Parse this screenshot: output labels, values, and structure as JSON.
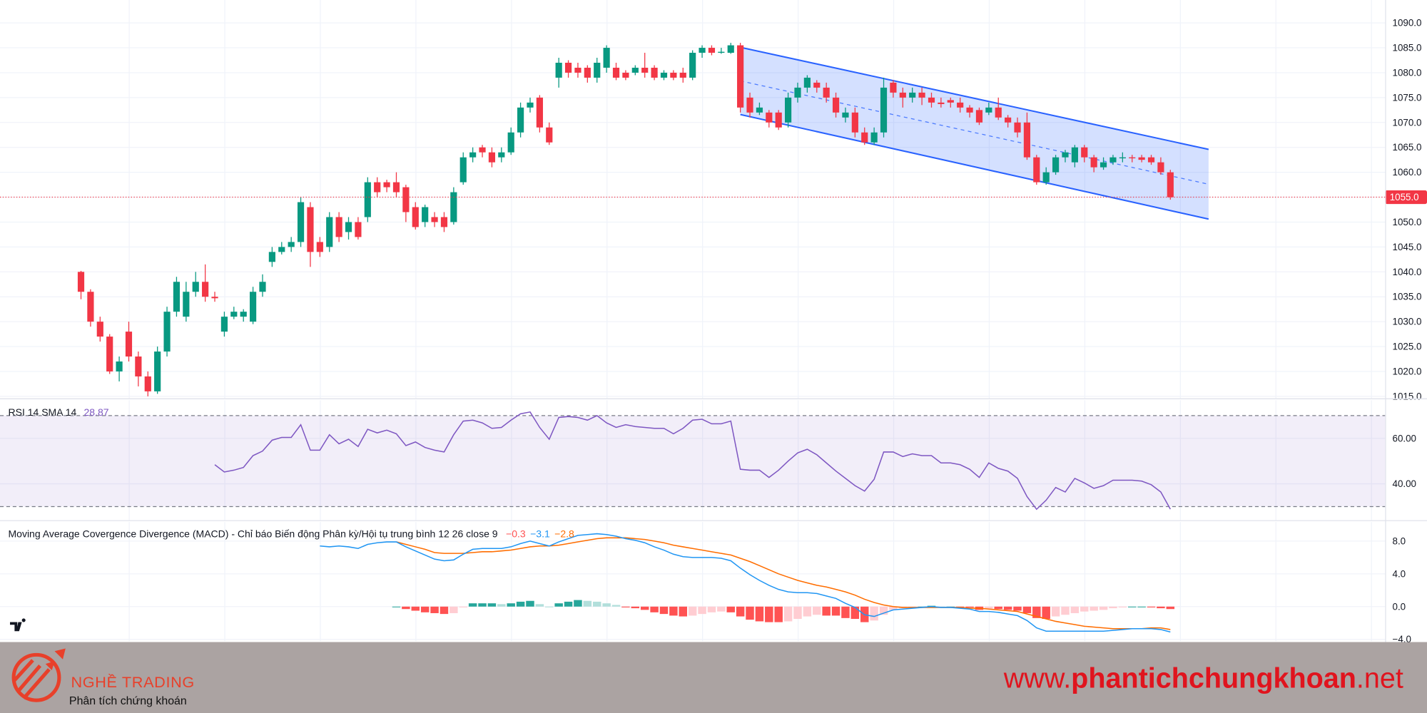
{
  "chart_data": [
    {
      "type": "candlestick",
      "open": [
        1040,
        1036,
        1030,
        1027,
        1020,
        1028,
        1023,
        1019,
        1016,
        1024,
        1032,
        1031,
        1036,
        1038,
        1035,
        1028,
        1031,
        1031,
        1030,
        1036,
        1042,
        1044,
        1045,
        1046,
        1053,
        1046,
        1045,
        1051,
        1048,
        1050,
        1051,
        1058,
        1058,
        1058,
        1057,
        1053,
        1050,
        1051,
        1051,
        1050,
        1058,
        1063,
        1065,
        1064,
        1063,
        1064,
        1068,
        1073,
        1075,
        1069,
        1079,
        1082,
        1081,
        1081,
        1079,
        1081,
        1081,
        1080,
        1080,
        1081,
        1081,
        1079,
        1080,
        1080,
        1079,
        1084,
        1085,
        1084,
        1084,
        1085.5,
        1075,
        1072,
        1072,
        1072,
        1070,
        1075,
        1077,
        1078,
        1077,
        1075,
        1071,
        1072,
        1068,
        1066,
        1068,
        1078,
        1076,
        1075,
        1076,
        1075,
        1074,
        1074.5,
        1074,
        1073,
        1072.5,
        1072,
        1073,
        1071,
        1070,
        1070,
        1063,
        1058,
        1060,
        1063,
        1062,
        1065,
        1063,
        1061,
        1062,
        1062.8,
        1063,
        1063,
        1063,
        1062,
        1060
      ],
      "high": [
        1040.2,
        1036.5,
        1031,
        1027.5,
        1023,
        1030,
        1024,
        1020,
        1025,
        1033,
        1039,
        1038,
        1040,
        1041.5,
        1036,
        1032,
        1033,
        1032.5,
        1037,
        1039.5,
        1045,
        1046,
        1047,
        1055,
        1054,
        1047,
        1052,
        1052,
        1051,
        1051,
        1059,
        1059,
        1058.5,
        1060,
        1057.5,
        1054,
        1053.5,
        1052,
        1052,
        1057,
        1064,
        1065,
        1065.5,
        1065,
        1065,
        1069,
        1074,
        1075,
        1075.5,
        1070,
        1083,
        1082.5,
        1082,
        1081.5,
        1083,
        1085.5,
        1082,
        1080.5,
        1081.5,
        1084,
        1081.5,
        1080.5,
        1080.5,
        1081,
        1084.5,
        1085.5,
        1085.5,
        1085,
        1086,
        1086,
        1076,
        1074,
        1072.5,
        1072.5,
        1076,
        1078,
        1079.5,
        1078.5,
        1078,
        1076,
        1073,
        1073,
        1069,
        1069,
        1079,
        1078.5,
        1077,
        1077,
        1077,
        1076,
        1075,
        1075,
        1075,
        1073.5,
        1073,
        1074,
        1075,
        1071.5,
        1071,
        1072,
        1063.5,
        1061,
        1063.5,
        1064.5,
        1065.5,
        1065.5,
        1063.5,
        1063,
        1063.5,
        1064,
        1063.5,
        1063.5,
        1063.5,
        1063,
        1060.5
      ],
      "low": [
        1034.5,
        1029,
        1026,
        1019.5,
        1018,
        1022,
        1017,
        1015,
        1015.5,
        1023,
        1031,
        1030,
        1035,
        1034,
        1034,
        1027,
        1030.5,
        1030,
        1029.5,
        1035,
        1041,
        1043.5,
        1044,
        1045,
        1041,
        1043,
        1044,
        1046,
        1046.5,
        1046.5,
        1050,
        1055,
        1056,
        1055,
        1050,
        1048.5,
        1049,
        1049,
        1048,
        1049.5,
        1057.5,
        1062,
        1063,
        1061,
        1062,
        1063.5,
        1067,
        1072,
        1068,
        1065.5,
        1077,
        1079,
        1079,
        1078,
        1078,
        1080,
        1078.5,
        1078.5,
        1079.5,
        1079,
        1078.5,
        1078.5,
        1078.5,
        1078,
        1078.5,
        1083,
        1083.5,
        1083.8,
        1083.8,
        1072,
        1071,
        1071.5,
        1069,
        1068.5,
        1069,
        1074,
        1076,
        1076,
        1074,
        1071,
        1070,
        1067,
        1065.5,
        1065.5,
        1067,
        1075,
        1073,
        1074,
        1073.5,
        1073,
        1073,
        1073,
        1072,
        1071,
        1069.5,
        1071.5,
        1070.5,
        1069,
        1067,
        1062.5,
        1057.5,
        1057.5,
        1059.5,
        1062,
        1061,
        1062,
        1060,
        1060.5,
        1061.5,
        1062,
        1062,
        1062,
        1061.5,
        1059.5,
        1054.5
      ],
      "close": [
        1036,
        1030,
        1027,
        1020,
        1022,
        1023,
        1019,
        1016,
        1024,
        1032,
        1038,
        1036,
        1038,
        1035,
        1034.7,
        1031,
        1032,
        1032,
        1036,
        1038,
        1044,
        1045,
        1046,
        1054,
        1044,
        1044,
        1051,
        1047,
        1050,
        1047,
        1058,
        1056,
        1057,
        1056,
        1052,
        1049,
        1053,
        1050,
        1049,
        1056,
        1063,
        1064,
        1064,
        1062,
        1064,
        1068,
        1073,
        1074,
        1069,
        1066,
        1082,
        1080,
        1080,
        1079,
        1082,
        1085,
        1079,
        1079,
        1081,
        1080,
        1079,
        1080,
        1079,
        1079,
        1084,
        1085,
        1084,
        1084.2,
        1085.5,
        1073,
        1072,
        1073,
        1070,
        1069,
        1075,
        1077,
        1079,
        1077,
        1075,
        1072,
        1072,
        1068,
        1066,
        1068,
        1077,
        1076,
        1075,
        1076,
        1075,
        1074,
        1073.7,
        1074,
        1073,
        1072,
        1070,
        1073,
        1071,
        1070,
        1068,
        1063,
        1058,
        1060,
        1063,
        1064,
        1065,
        1063,
        1061,
        1062,
        1063,
        1063,
        1062.8,
        1062.5,
        1062,
        1060,
        1055
      ],
      "up_color": "#089981",
      "down_color": "#f23645",
      "ylim": [
        1014.6,
        1094.6
      ],
      "yticks": [
        {
          "value": 1015,
          "label": "1015.0"
        },
        {
          "value": 1020,
          "label": "1020.0"
        },
        {
          "value": 1025,
          "label": "1025.0"
        },
        {
          "value": 1030,
          "label": "1030.0"
        },
        {
          "value": 1035,
          "label": "1035.0"
        },
        {
          "value": 1040,
          "label": "1040.0"
        },
        {
          "value": 1045,
          "label": "1045.0"
        },
        {
          "value": 1050,
          "label": "1050.0"
        },
        {
          "value": 1055,
          "label": "1055.0"
        },
        {
          "value": 1060,
          "label": "1060.0"
        },
        {
          "value": 1065,
          "label": "1065.0"
        },
        {
          "value": 1070,
          "label": "1070.0"
        },
        {
          "value": 1075,
          "label": "1075.0"
        },
        {
          "value": 1080,
          "label": "1080.0"
        },
        {
          "value": 1085,
          "label": "1085.0"
        },
        {
          "value": 1090,
          "label": "1090.0"
        }
      ],
      "grid": true,
      "last_price": {
        "value": 1055,
        "label": "1055.0"
      },
      "channel": {
        "start_index": 69,
        "end_index": 118,
        "upper": [
          1085.1,
          1064.6
        ],
        "middle": [
          1078.35,
          1057.6
        ],
        "lower": [
          1071.6,
          1050.6
        ],
        "color": "#2962ff"
      }
    },
    {
      "type": "rsi",
      "title": "RSI 14 SMA 14",
      "last_value": 28.87,
      "values": [
        null,
        null,
        null,
        null,
        null,
        null,
        null,
        null,
        null,
        null,
        null,
        null,
        null,
        null,
        48.4,
        45.2,
        46,
        47.2,
        52.4,
        54.4,
        59.2,
        60.4,
        60.4,
        66,
        54.8,
        54.8,
        61.6,
        57.6,
        59.6,
        56.4,
        64,
        62.4,
        63.6,
        62,
        56.8,
        58.4,
        56,
        54.8,
        54,
        61.6,
        67.6,
        68,
        66.8,
        64.4,
        64.8,
        68,
        70.8,
        71.6,
        64.8,
        59.6,
        69.2,
        69.6,
        69.2,
        68,
        70,
        66.8,
        64.8,
        66,
        65.2,
        64.8,
        64.4,
        64.4,
        62,
        64.4,
        68,
        68.4,
        66.4,
        66.4,
        67.6,
        46.4,
        46,
        46,
        42.8,
        46,
        50,
        53.6,
        55.2,
        52.8,
        49.2,
        45.6,
        42.4,
        39.2,
        36.8,
        42,
        54,
        54,
        52,
        53.2,
        52.4,
        52.4,
        49.2,
        49.2,
        48.4,
        46.4,
        42.8,
        49.2,
        46.8,
        45.6,
        42.4,
        34.4,
        28.8,
        32.8,
        38.4,
        36.4,
        42.4,
        40.4,
        38,
        39.2,
        41.6,
        41.6,
        41.6,
        41.2,
        39.6,
        36.4,
        28.87
      ],
      "color": "#7e57c2",
      "band": [
        30,
        70
      ],
      "ylim": [
        24,
        76.8
      ],
      "yticks": [
        {
          "value": 60,
          "label": "60.00"
        },
        {
          "value": 40,
          "label": "40.00"
        }
      ],
      "grid": true
    },
    {
      "type": "macd",
      "title": "Moving Average Covergence Divergence (MACD) - Chỉ báo Biến động Phân kỳ/Hội tụ trung bình 12 26 close 9",
      "legend_values": [
        {
          "value": -0.3,
          "label": "−0.3"
        },
        {
          "value": -3.1,
          "label": "−3.1"
        },
        {
          "value": -2.8,
          "label": "−2.8"
        }
      ],
      "histogram": {
        "color_up": "#26a69a",
        "color_up_fade": "#b2dfdb",
        "color_down": "#ff5252",
        "color_down_fade": "#ffcdd2",
        "values": [
          null,
          null,
          null,
          null,
          null,
          null,
          null,
          null,
          null,
          null,
          null,
          null,
          null,
          null,
          null,
          null,
          null,
          null,
          null,
          null,
          null,
          null,
          null,
          null,
          null,
          null,
          null,
          null,
          null,
          null,
          null,
          null,
          null,
          0.0,
          -0.3,
          -0.5,
          -0.7,
          -0.8,
          -0.9,
          -0.8,
          -0.1,
          0.4,
          0.4,
          0.4,
          0.3,
          0.4,
          0.6,
          0.7,
          0.3,
          0.0,
          0.4,
          0.6,
          0.8,
          0.7,
          0.6,
          0.4,
          0.2,
          -0.1,
          -0.2,
          -0.4,
          -0.7,
          -0.9,
          -1.1,
          -1.2,
          -1.1,
          -0.9,
          -0.7,
          -0.6,
          -0.7,
          -1.2,
          -1.6,
          -1.8,
          -1.9,
          -1.9,
          -1.8,
          -1.5,
          -1.2,
          -1.0,
          -1.1,
          -1.1,
          -1.4,
          -1.5,
          -1.9,
          -1.7,
          -1.0,
          -0.4,
          -0.2,
          -0.1,
          0.0,
          0.1,
          0.0,
          0.0,
          -0.1,
          -0.1,
          -0.4,
          -0.3,
          -0.3,
          -0.4,
          -0.5,
          -0.8,
          -1.4,
          -1.5,
          -1.2,
          -1.0,
          -0.8,
          -0.6,
          -0.5,
          -0.4,
          -0.2,
          -0.1,
          0.0,
          0.0,
          -0.1,
          -0.2,
          -0.3
        ]
      },
      "macd": {
        "color": "#2196f3",
        "values": [
          null,
          null,
          null,
          null,
          null,
          null,
          null,
          null,
          null,
          null,
          null,
          null,
          null,
          null,
          null,
          null,
          null,
          null,
          null,
          null,
          null,
          null,
          null,
          null,
          null,
          7.4,
          7.3,
          7.4,
          7.3,
          7.1,
          7.6,
          7.8,
          7.9,
          7.9,
          7.3,
          6.8,
          6.3,
          5.8,
          5.6,
          5.7,
          6.4,
          7.0,
          7.1,
          7.1,
          7.1,
          7.3,
          7.7,
          8.0,
          7.7,
          7.4,
          7.9,
          8.3,
          8.7,
          8.8,
          8.9,
          8.8,
          8.6,
          8.3,
          8.1,
          7.8,
          7.3,
          6.9,
          6.4,
          6.1,
          6.0,
          6.0,
          6.0,
          5.9,
          5.6,
          4.7,
          3.9,
          3.2,
          2.6,
          2.1,
          1.8,
          1.7,
          1.7,
          1.6,
          1.3,
          1.0,
          0.4,
          -0.1,
          -1.0,
          -1.2,
          -0.8,
          -0.4,
          -0.3,
          -0.2,
          -0.1,
          0.0,
          -0.1,
          -0.1,
          -0.2,
          -0.3,
          -0.6,
          -0.6,
          -0.7,
          -0.9,
          -1.1,
          -1.7,
          -2.6,
          -3.0,
          -3.0,
          -3.0,
          -3.0,
          -3.0,
          -3.0,
          -3.0,
          -2.9,
          -2.8,
          -2.7,
          -2.7,
          -2.7,
          -2.8,
          -3.1
        ]
      },
      "signal": {
        "color": "#ff6d00",
        "values": [
          null,
          null,
          null,
          null,
          null,
          null,
          null,
          null,
          null,
          null,
          null,
          null,
          null,
          null,
          null,
          null,
          null,
          null,
          null,
          null,
          null,
          null,
          null,
          null,
          null,
          null,
          null,
          null,
          null,
          null,
          null,
          null,
          null,
          7.9,
          7.6,
          7.3,
          7.0,
          6.6,
          6.5,
          6.5,
          6.5,
          6.6,
          6.7,
          6.7,
          6.8,
          6.9,
          7.1,
          7.3,
          7.4,
          7.4,
          7.5,
          7.7,
          7.9,
          8.1,
          8.3,
          8.4,
          8.4,
          8.4,
          8.3,
          8.2,
          8.0,
          7.8,
          7.5,
          7.3,
          7.1,
          6.9,
          6.7,
          6.5,
          6.3,
          5.9,
          5.5,
          5.0,
          4.5,
          4.0,
          3.6,
          3.2,
          2.9,
          2.6,
          2.4,
          2.1,
          1.8,
          1.4,
          0.9,
          0.5,
          0.2,
          0.0,
          -0.1,
          -0.1,
          -0.1,
          -0.1,
          -0.1,
          -0.1,
          -0.1,
          -0.2,
          -0.2,
          -0.3,
          -0.4,
          -0.5,
          -0.6,
          -0.9,
          -1.2,
          -1.5,
          -1.8,
          -2.0,
          -2.2,
          -2.4,
          -2.5,
          -2.6,
          -2.7,
          -2.7,
          -2.7,
          -2.7,
          -2.6,
          -2.6,
          -2.8
        ]
      },
      "ylim": [
        -4.22,
        10.33
      ],
      "yticks": [
        {
          "value": 8,
          "label": "8.0"
        },
        {
          "value": 4,
          "label": "4.0"
        },
        {
          "value": 0,
          "label": "0.0"
        },
        {
          "value": -4,
          "label": "−4.0"
        }
      ],
      "grid": true
    }
  ],
  "banner": {
    "brand": "NGHỀ TRADING",
    "tagline": "Phân tích chứng khoán",
    "url_prefix": "www.",
    "url_domain": "phantichchungkhoan",
    "url_suffix": ".net"
  }
}
